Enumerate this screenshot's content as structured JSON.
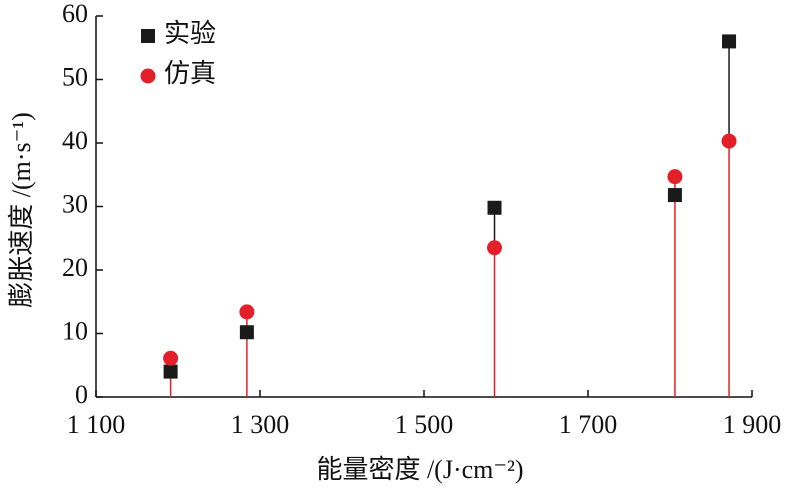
{
  "chart_data": {
    "type": "scatter",
    "x_label": "能量密度 /(J·cm⁻²)",
    "y_label": "膨胀速度 /(m·s⁻¹)",
    "xlim": [
      1100,
      1900
    ],
    "xticks": [
      {
        "value": 1100,
        "label": "1 100"
      },
      {
        "value": 1300,
        "label": "1 300"
      },
      {
        "value": 1500,
        "label": "1 500"
      },
      {
        "value": 1700,
        "label": "1 700"
      },
      {
        "value": 1900,
        "label": "1 900"
      }
    ],
    "ylim": [
      0,
      60
    ],
    "yticks": [
      0,
      10,
      20,
      30,
      40,
      50,
      60
    ],
    "x": [
      1191,
      1284,
      1586,
      1806,
      1872
    ],
    "series": [
      {
        "name": "实验",
        "color": "#1a1a1a",
        "marker": "square",
        "values": [
          4,
          10.2,
          29.8,
          31.8,
          56
        ]
      },
      {
        "name": "仿真",
        "color": "#e3202a",
        "marker": "circle",
        "values": [
          6.1,
          13.4,
          23.5,
          34.7,
          40.3
        ]
      }
    ],
    "legend": "top-left"
  }
}
